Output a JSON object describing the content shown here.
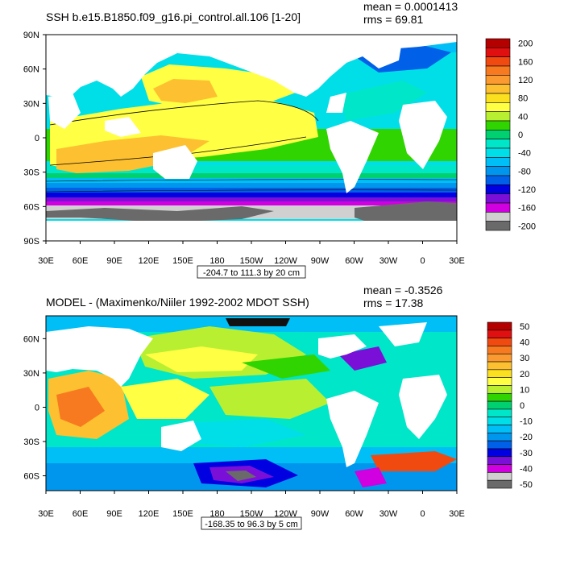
{
  "chart_data": [
    {
      "type": "heatmap",
      "title": "SSH b.e15.B1850.f09_g16.pi_control.all.106 [1-20]",
      "stats": {
        "mean": "mean = 0.0001413",
        "rms": "rms = 69.81"
      },
      "y_ticks": [
        "90N",
        "60N",
        "30N",
        "0",
        "30S",
        "60S",
        "90S"
      ],
      "y_values": [
        90,
        60,
        30,
        0,
        -30,
        -60,
        -90
      ],
      "x_ticks": [
        "30E",
        "60E",
        "90E",
        "120E",
        "150E",
        "180",
        "150W",
        "120W",
        "90W",
        "60W",
        "30W",
        "0",
        "30E"
      ],
      "x_values": [
        30,
        60,
        90,
        120,
        150,
        180,
        210,
        240,
        270,
        300,
        330,
        360,
        390
      ],
      "xlim": [
        30,
        390
      ],
      "ylim": [
        -90,
        90
      ],
      "colorbar_labels": [
        "200",
        "160",
        "120",
        "80",
        "40",
        "0",
        "-40",
        "-80",
        "-120",
        "-160",
        "-200"
      ],
      "colorbar_colors": [
        "#b50000",
        "#e01010",
        "#f04a10",
        "#f77a20",
        "#fb9a30",
        "#fdc030",
        "#fbe020",
        "#ffff44",
        "#b8ef30",
        "#30d400",
        "#00d070",
        "#00e6c8",
        "#00dfe8",
        "#00bff6",
        "#0096ee",
        "#0060e8",
        "#0000e0",
        "#7a10d8",
        "#d000e0",
        "#d0d0d0",
        "#6a6a6a"
      ],
      "range_note": "-204.7 to 111.3 by 20 cm"
    },
    {
      "type": "heatmap",
      "title": "MODEL - (Maximenko/Niiler 1992-2002 MDOT SSH)",
      "stats": {
        "mean": "mean = -0.3526",
        "rms": "rms = 17.38"
      },
      "y_ticks": [
        "60N",
        "30N",
        "0",
        "30S",
        "60S"
      ],
      "y_values": [
        60,
        30,
        0,
        -30,
        -60
      ],
      "x_ticks": [
        "30E",
        "60E",
        "90E",
        "120E",
        "150E",
        "180",
        "150W",
        "120W",
        "90W",
        "60W",
        "30W",
        "0",
        "30E"
      ],
      "x_values": [
        30,
        60,
        90,
        120,
        150,
        180,
        210,
        240,
        270,
        300,
        330,
        360,
        390
      ],
      "xlim": [
        30,
        390
      ],
      "ylim": [
        -73,
        80
      ],
      "colorbar_labels": [
        "50",
        "40",
        "30",
        "20",
        "10",
        "0",
        "-10",
        "-20",
        "-30",
        "-40",
        "-50"
      ],
      "colorbar_colors": [
        "#b50000",
        "#e01010",
        "#f04a10",
        "#f77a20",
        "#fb9a30",
        "#fdc030",
        "#fbe020",
        "#ffff44",
        "#b8ef30",
        "#30d400",
        "#00d070",
        "#00e6c8",
        "#00dfe8",
        "#00bff6",
        "#0096ee",
        "#0060e8",
        "#0000e0",
        "#7a10d8",
        "#d000e0",
        "#d0d0d0",
        "#6a6a6a"
      ],
      "range_note": "-168.35 to 96.3 by 5 cm"
    }
  ]
}
